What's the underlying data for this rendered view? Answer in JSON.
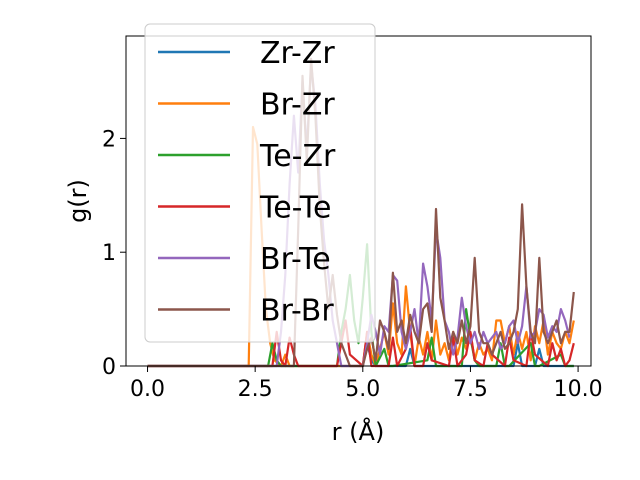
{
  "chart_data": {
    "type": "line",
    "xlabel": "r (Å)",
    "ylabel": "g(r)",
    "xlim": [
      -0.5,
      10.3
    ],
    "ylim": [
      0,
      2.9
    ],
    "xticks": [
      0.0,
      2.5,
      5.0,
      7.5,
      10.0
    ],
    "xtick_labels": [
      "0.0",
      "2.5",
      "5.0",
      "7.5",
      "10.0"
    ],
    "yticks": [
      0,
      1,
      2
    ],
    "ytick_labels": [
      "0",
      "1",
      "2"
    ],
    "grid": false,
    "legend_position": "top-left",
    "series": [
      {
        "name": "Zr-Zr",
        "color": "#1f77b4",
        "x": [
          0,
          5.0,
          5.1,
          5.2,
          5.3,
          6.0,
          6.1,
          6.2,
          8.5,
          8.6,
          8.7,
          9.0,
          9.1,
          9.2,
          9.9
        ],
        "y": [
          0,
          0,
          0.2,
          0.05,
          0,
          0,
          0.15,
          0,
          0,
          0.2,
          0,
          0,
          0.15,
          0,
          0
        ]
      },
      {
        "name": "Br-Zr",
        "color": "#ff7f0e",
        "x": [
          0,
          2.35,
          2.45,
          2.55,
          2.65,
          2.75,
          2.85,
          2.95,
          3.1,
          3.2,
          3.3,
          5.0,
          5.1,
          5.2,
          5.3,
          5.5,
          5.6,
          5.7,
          5.8,
          5.9,
          6.0,
          6.1,
          6.2,
          6.3,
          6.4,
          6.5,
          6.6,
          6.7,
          6.8,
          6.9,
          7.0,
          7.1,
          7.2,
          7.3,
          7.4,
          7.5,
          7.6,
          7.7,
          7.8,
          7.9,
          8.0,
          8.1,
          8.2,
          8.3,
          8.4,
          8.5,
          8.6,
          8.7,
          8.8,
          8.9,
          9.0,
          9.1,
          9.2,
          9.3,
          9.4,
          9.5,
          9.6,
          9.7,
          9.8,
          9.9
        ],
        "y": [
          0,
          0,
          2.1,
          1.95,
          1.2,
          0.5,
          0.2,
          0.05,
          0,
          0.1,
          0,
          0,
          0.3,
          0.1,
          0,
          0.3,
          0.1,
          0.55,
          0.2,
          0.1,
          0.7,
          0.3,
          0,
          0.25,
          0.1,
          0.3,
          0.05,
          0.4,
          0.1,
          0.2,
          0.05,
          0.3,
          0.1,
          0.25,
          0.15,
          0.3,
          0.05,
          0.2,
          0.1,
          0.15,
          0.05,
          0.4,
          0.4,
          0.2,
          0.35,
          0.1,
          0.3,
          0.15,
          0.3,
          0.05,
          0.35,
          0.2,
          0.4,
          0.1,
          0.3,
          0.2,
          0.15,
          0.3,
          0.2,
          0.4
        ]
      },
      {
        "name": "Te-Zr",
        "color": "#2ca02c",
        "x": [
          0,
          2.8,
          2.9,
          3.0,
          3.1,
          4.4,
          4.5,
          4.6,
          4.7,
          4.8,
          4.9,
          5.0,
          5.1,
          5.2,
          5.3,
          5.5,
          5.6,
          5.7,
          6.5,
          6.6,
          6.7,
          7.3,
          7.4,
          7.5,
          7.6,
          7.7,
          8.1,
          8.2,
          8.3,
          8.4,
          8.9,
          9.0,
          9.1,
          9.6,
          9.7,
          9.9
        ],
        "y": [
          0,
          0,
          0.2,
          0.05,
          0,
          0,
          0.3,
          0.5,
          0.8,
          0.4,
          0.2,
          0.6,
          1.07,
          0.3,
          0,
          0.15,
          0,
          0,
          0.05,
          0.25,
          0,
          0,
          0.5,
          0.25,
          0.05,
          0,
          0,
          0.2,
          0,
          0,
          0.2,
          0,
          0,
          0.1,
          0,
          0
        ]
      },
      {
        "name": "Te-Te",
        "color": "#d62728",
        "x": [
          0,
          2.9,
          3.0,
          3.1,
          3.2,
          3.3,
          3.4,
          3.5,
          4.4,
          4.5,
          4.6,
          4.7,
          5.0,
          5.1,
          5.2,
          5.6,
          5.7,
          5.8,
          6.0,
          6.1,
          6.2,
          6.4,
          6.5,
          6.6,
          7.0,
          7.1,
          7.2,
          7.4,
          7.5,
          7.6,
          7.8,
          7.9,
          8.0,
          8.3,
          8.4,
          8.5,
          8.8,
          8.9,
          9.0,
          9.3,
          9.4,
          9.5,
          9.6,
          9.7,
          9.8,
          9.9
        ],
        "y": [
          0,
          0,
          0.3,
          0.05,
          0,
          0.25,
          0.1,
          0,
          0,
          0.2,
          0.4,
          0.1,
          0,
          0.3,
          0,
          0,
          0.25,
          0,
          0.15,
          0.35,
          0,
          0,
          0.2,
          0.05,
          0,
          0.25,
          0,
          0.1,
          0.3,
          0.05,
          0,
          0.2,
          0.1,
          0,
          0.25,
          0.05,
          0,
          0.3,
          0.1,
          0,
          0.2,
          0.05,
          0.15,
          0,
          0.05,
          0.2
        ]
      },
      {
        "name": "Br-Te",
        "color": "#9467bd",
        "x": [
          0,
          3.0,
          3.1,
          3.2,
          3.3,
          3.4,
          3.5,
          3.6,
          3.7,
          3.8,
          3.9,
          4.0,
          4.1,
          4.2,
          4.3,
          4.4,
          4.5,
          5.0,
          5.1,
          5.2,
          5.3,
          5.4,
          5.5,
          5.6,
          5.7,
          5.8,
          5.9,
          6.0,
          6.1,
          6.2,
          6.3,
          6.4,
          6.5,
          6.6,
          6.7,
          6.8,
          6.9,
          7.0,
          7.1,
          7.2,
          7.3,
          7.4,
          7.5,
          7.6,
          7.7,
          7.8,
          7.9,
          8.0,
          8.1,
          8.2,
          8.3,
          8.4,
          8.5,
          8.6,
          8.7,
          8.8,
          8.9,
          9.0,
          9.1,
          9.2,
          9.3,
          9.4,
          9.5,
          9.6,
          9.7,
          9.8
        ],
        "y": [
          0,
          0,
          0.3,
          0.8,
          1.6,
          2.2,
          1.7,
          2.5,
          1.9,
          2.65,
          2.3,
          1.6,
          1.1,
          0.8,
          0.4,
          0.2,
          0,
          0,
          0.2,
          0.45,
          0.3,
          0.1,
          0.35,
          0.3,
          0.8,
          0.75,
          0.3,
          0.15,
          0.3,
          0.5,
          0.2,
          0.9,
          0.7,
          0.4,
          1.2,
          0.95,
          0.4,
          0.3,
          0.1,
          0.25,
          0.6,
          0.35,
          0.2,
          0.3,
          0.15,
          0.3,
          0.2,
          0.25,
          0.3,
          0.15,
          0.2,
          0.35,
          0.4,
          0.2,
          0.35,
          0.7,
          0.25,
          0.3,
          0.5,
          0.45,
          0.25,
          0.35,
          0.3,
          0.5,
          0.4,
          0.25
        ]
      },
      {
        "name": "Br-Br",
        "color": "#8c564b",
        "x": [
          0,
          3.4,
          3.5,
          3.6,
          3.7,
          3.8,
          3.9,
          4.0,
          4.1,
          4.2,
          4.3,
          4.4,
          4.5,
          4.6,
          4.7,
          5.0,
          5.1,
          5.2,
          5.3,
          5.4,
          5.5,
          5.6,
          5.7,
          5.8,
          5.9,
          6.0,
          6.1,
          6.2,
          6.3,
          6.4,
          6.5,
          6.6,
          6.7,
          6.8,
          6.9,
          7.0,
          7.1,
          7.2,
          7.3,
          7.4,
          7.5,
          7.6,
          7.7,
          7.8,
          7.9,
          8.0,
          8.1,
          8.2,
          8.3,
          8.4,
          8.5,
          8.6,
          8.7,
          8.8,
          8.9,
          9.0,
          9.1,
          9.2,
          9.3,
          9.4,
          9.5,
          9.6,
          9.7,
          9.8,
          9.9
        ],
        "y": [
          0,
          0,
          1.2,
          2.55,
          1.8,
          2.7,
          2.2,
          1.4,
          0.9,
          0.5,
          0.8,
          0.45,
          0.2,
          0.1,
          0,
          0,
          0.15,
          0.25,
          0.05,
          0.4,
          0.3,
          0.15,
          0.82,
          0.3,
          0.4,
          0.2,
          0.45,
          0.3,
          0.2,
          0.5,
          0.55,
          0.3,
          1.38,
          0.6,
          0.4,
          0.15,
          0.3,
          0.2,
          0.4,
          0.2,
          0.35,
          0.95,
          0.3,
          0.2,
          0.2,
          0.1,
          0.2,
          0.3,
          0.15,
          0.2,
          0.3,
          0.5,
          1.42,
          0.7,
          0.3,
          0.2,
          0.95,
          0.3,
          0.2,
          0.3,
          0.4,
          0.2,
          0.3,
          0.3,
          0.65
        ]
      }
    ]
  }
}
